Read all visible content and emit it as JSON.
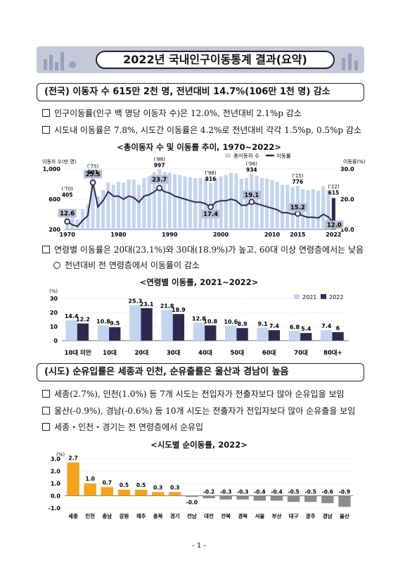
{
  "title": "2022년 국내인구이동통계 결과(요약)",
  "section1": {
    "heading": "(전국) 이동자 수 615만 2천 명, 전년대비 14.7%(106만 1천 명) 감소",
    "bullets": [
      "인구이동률(인구 백 명당 이동자 수)은 12.0%, 전년대비 2.1%p 감소",
      "시도내 이동률은 7.8%, 시도간 이동률은 4.2%로 전년대비 각각 1.5%p, 0.5%p 감소"
    ]
  },
  "chart1": {
    "title": "<총이동자 수 및 이동률 추이, 1970~2022>",
    "ylabel_left": "이동자 수(만 명)",
    "ylabel_right": "이동률(%)",
    "legend": {
      "bar": "총이동자 수",
      "line": "이동률"
    },
    "yticks_left": [
      "1,000",
      "600",
      "200"
    ],
    "yticks_right": [
      "30.0",
      "20.0",
      "10.0"
    ],
    "xticks": [
      "1970",
      "1980",
      "1990",
      "2000",
      "2010",
      "2015",
      "2022"
    ],
    "callouts": [
      {
        "year": "('70)",
        "value": "405"
      },
      {
        "year": "('75)",
        "value": "901"
      },
      {
        "year": "('88)",
        "value": "997"
      },
      {
        "year": "('98)",
        "value": "816"
      },
      {
        "year": "('06)",
        "value": "934"
      },
      {
        "year": "('15)",
        "value": "776"
      },
      {
        "year": "('22)",
        "value": "615"
      }
    ],
    "rate_labels": [
      "12.6",
      "25.5",
      "23.7",
      "17.4",
      "19.1",
      "15.2",
      "12.0"
    ]
  },
  "section1b": {
    "bullet": "연령별 이동률은 20대(23.1%)와 30대(18.9%)가 높고, 60대 이상 연령층에서는 낮음",
    "sub": "전년대비 전 연령층에서 이동률이 감소"
  },
  "chart2": {
    "title": "<연령별 이동률, 2021~2022>",
    "unit": "(%)",
    "legend": [
      "2021",
      "2022"
    ],
    "yticks": [
      "30",
      "20",
      "10",
      "0"
    ]
  },
  "section2": {
    "heading": "(시도) 순유입률은 세종과 인천, 순유출률은 울산과 경남이 높음",
    "bullets": [
      "세종(2.7%), 인천(1.0%) 등 7개 시도는 전입자가 전출자보다 많아 순유입을 보임",
      "울산(-0.9%), 경남(-0.6%) 등 10개 시도는 전출자가 전입자보다 많아 순유출을 보임",
      "세종・인천・경기는 전 연령층에서 순유입"
    ]
  },
  "chart3": {
    "title": "<시도별 순이동률, 2022>",
    "unit": "(%)",
    "yticks": [
      "3.0",
      "2.0",
      "1.0",
      "0.0",
      "-1.0"
    ]
  },
  "page_number": "- 1 -",
  "chart_data": [
    {
      "type": "bar",
      "title": "<총이동자 수 및 이동률 추이, 1970~2022>",
      "xlabel": "",
      "ylabel": "이동자 수(만 명)",
      "ylim": [
        200,
        1000
      ],
      "y2lim": [
        10,
        30
      ],
      "x": [
        1970,
        1971,
        1972,
        1973,
        1974,
        1975,
        1976,
        1977,
        1978,
        1979,
        1980,
        1981,
        1982,
        1983,
        1984,
        1985,
        1986,
        1987,
        1988,
        1989,
        1990,
        1991,
        1992,
        1993,
        1994,
        1995,
        1996,
        1997,
        1998,
        1999,
        2000,
        2001,
        2002,
        2003,
        2004,
        2005,
        2006,
        2007,
        2008,
        2009,
        2010,
        2011,
        2012,
        2013,
        2014,
        2015,
        2016,
        2017,
        2018,
        2019,
        2020,
        2021,
        2022
      ],
      "series": [
        {
          "name": "총이동자 수",
          "values": [
            405,
            380,
            330,
            470,
            530,
            901,
            640,
            720,
            820,
            790,
            830,
            820,
            860,
            860,
            790,
            880,
            900,
            960,
            997,
            960,
            950,
            930,
            920,
            900,
            890,
            880,
            880,
            870,
            816,
            880,
            900,
            920,
            950,
            940,
            870,
            880,
            934,
            910,
            880,
            870,
            850,
            830,
            790,
            790,
            760,
            776,
            730,
            720,
            730,
            710,
            770,
            720,
            615
          ]
        },
        {
          "name": "이동률",
          "values": [
            12.6,
            11.5,
            11.0,
            13.0,
            14.5,
            25.5,
            17.5,
            19.5,
            22.5,
            21.0,
            21.0,
            20.0,
            21.0,
            20.5,
            19.0,
            21.0,
            21.5,
            22.5,
            23.7,
            22.5,
            22.0,
            21.0,
            20.5,
            20.0,
            19.5,
            19.0,
            19.0,
            18.5,
            17.4,
            19.0,
            19.5,
            19.5,
            20.0,
            19.5,
            18.0,
            18.0,
            19.1,
            18.5,
            18.0,
            17.5,
            17.0,
            16.5,
            15.5,
            15.5,
            15.0,
            15.2,
            14.5,
            14.0,
            14.0,
            13.8,
            15.0,
            14.1,
            12.0
          ]
        }
      ]
    },
    {
      "type": "bar",
      "title": "<연령별 이동률, 2021~2022>",
      "categories": [
        "10대 미만",
        "10대",
        "20대",
        "30대",
        "40대",
        "50대",
        "60대",
        "70대",
        "80대+"
      ],
      "series": [
        {
          "name": "2021",
          "values": [
            14.4,
            10.8,
            25.3,
            21.8,
            12.8,
            10.6,
            9.1,
            6.8,
            7.4
          ]
        },
        {
          "name": "2022",
          "values": [
            12.2,
            9.5,
            23.1,
            18.9,
            10.8,
            8.9,
            7.4,
            5.4,
            6.0
          ]
        }
      ],
      "ylabel": "(%)",
      "ylim": [
        0,
        30
      ]
    },
    {
      "type": "bar",
      "title": "<시도별 순이동률, 2022>",
      "categories": [
        "세종",
        "인천",
        "충남",
        "강원",
        "제주",
        "충북",
        "경기",
        "전남",
        "대전",
        "전북",
        "경북",
        "서울",
        "부산",
        "대구",
        "광주",
        "경남",
        "울산"
      ],
      "values": [
        2.7,
        1.0,
        0.7,
        0.5,
        0.5,
        0.3,
        0.3,
        -0.0,
        -0.2,
        -0.3,
        -0.3,
        -0.4,
        -0.4,
        -0.5,
        -0.5,
        -0.6,
        -0.9
      ],
      "labels": [
        "2.7",
        "1.0",
        "0.7",
        "0.5",
        "0.5",
        "0.3",
        "0.3",
        "-0.0",
        "-0.2",
        "-0.3",
        "-0.3",
        "-0.4",
        "-0.4",
        "-0.5",
        "-0.5",
        "-0.6",
        "-0.9"
      ],
      "ylabel": "(%)",
      "ylim": [
        -1,
        3
      ]
    }
  ]
}
